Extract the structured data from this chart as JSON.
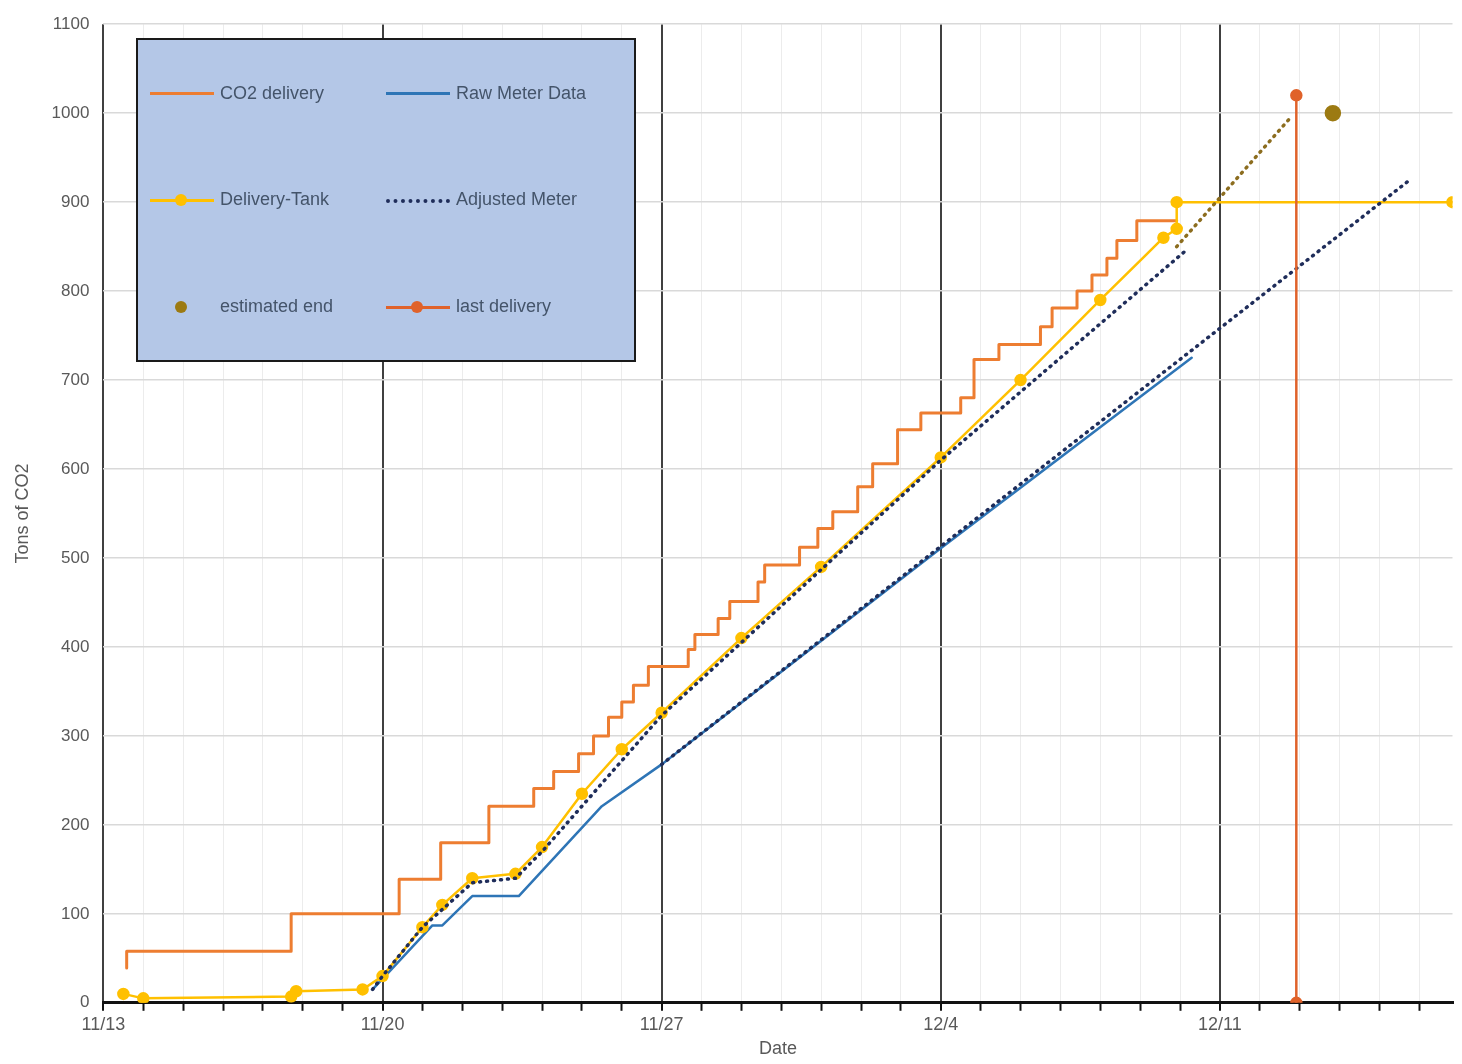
{
  "chart_data": {
    "type": "line",
    "xlabel": "Date",
    "ylabel": "Tons of CO2",
    "xlim": [
      "--11-13",
      "--12-16T20:00"
    ],
    "xticks": [
      {
        "value": "--11-13",
        "label": "11/13"
      },
      {
        "value": "--11-14",
        "label": null
      },
      {
        "value": "--11-15",
        "label": null
      },
      {
        "value": "--11-16",
        "label": null
      },
      {
        "value": "--11-17",
        "label": null
      },
      {
        "value": "--11-18",
        "label": null
      },
      {
        "value": "--11-19",
        "label": null
      },
      {
        "value": "--11-20",
        "label": "11/20"
      },
      {
        "value": "--11-21",
        "label": null
      },
      {
        "value": "--11-22",
        "label": null
      },
      {
        "value": "--11-23",
        "label": null
      },
      {
        "value": "--11-24",
        "label": null
      },
      {
        "value": "--11-25",
        "label": null
      },
      {
        "value": "--11-26",
        "label": null
      },
      {
        "value": "--11-27",
        "label": "11/27"
      },
      {
        "value": "--11-28",
        "label": null
      },
      {
        "value": "--11-29",
        "label": null
      },
      {
        "value": "--11-30",
        "label": null
      },
      {
        "value": "--12-01",
        "label": null
      },
      {
        "value": "--12-02",
        "label": null
      },
      {
        "value": "--12-03",
        "label": null
      },
      {
        "value": "--12-04",
        "label": "12/4"
      },
      {
        "value": "--12-05",
        "label": null
      },
      {
        "value": "--12-06",
        "label": null
      },
      {
        "value": "--12-07",
        "label": null
      },
      {
        "value": "--12-08",
        "label": null
      },
      {
        "value": "--12-09",
        "label": null
      },
      {
        "value": "--12-10",
        "label": null
      },
      {
        "value": "--12-11",
        "label": "12/11"
      },
      {
        "value": "--12-12",
        "label": null
      },
      {
        "value": "--12-13",
        "label": null
      },
      {
        "value": "--12-14",
        "label": null
      },
      {
        "value": "--12-15",
        "label": null
      },
      {
        "value": "--12-16",
        "label": null
      }
    ],
    "ylim": [
      0,
      1100
    ],
    "yticks": [
      0,
      100,
      200,
      300,
      400,
      500,
      600,
      700,
      800,
      900,
      1000,
      1100
    ],
    "grid": true,
    "legend": "top left",
    "series": [
      {
        "name": "CO2 delivery",
        "type": "step",
        "color": "#ed7d31",
        "marker": "none",
        "x": [
          "--11-13T14:00",
          "--11-17T17:00",
          "--11-20T10:00",
          "--11-21T11:00",
          "--11-22T16:00",
          "--11-23T19:00",
          "--11-24T07:00",
          "--11-24T22:00",
          "--11-25T07:00",
          "--11-25T16:00",
          "--11-26T00:00",
          "--11-26T07:00",
          "--11-26T16:00",
          "--11-27T16:00",
          "--11-27T20:00",
          "--11-28T10:00",
          "--11-28T17:00",
          "--11-29T10:00",
          "--11-29T14:00",
          "--11-30T11:00",
          "--11-30T22:00",
          "--12-01T07:00",
          "--12-01T22:00",
          "--12-02T07:00",
          "--12-02T22:00",
          "--12-03T12:00",
          "--12-04T12:00",
          "--12-04T20:00",
          "--12-05T11:00",
          "--12-06T12:00",
          "--12-06T19:00",
          "--12-07T10:00",
          "--12-07T19:00",
          "--12-08T04:00",
          "--12-08T10:00",
          "--12-08T22:00",
          "--12-09T10:00",
          "--12-09T22:00"
        ],
        "values": [
          39,
          58,
          100,
          139,
          180,
          221,
          241,
          260,
          280,
          300,
          321,
          338,
          357,
          378,
          397,
          414,
          432,
          451,
          473,
          492,
          512,
          533,
          552,
          580,
          606,
          644,
          663,
          680,
          723,
          740,
          760,
          781,
          800,
          818,
          837,
          857,
          879,
          879
        ]
      },
      {
        "name": "Raw Meter Data",
        "color": "#2e75b6",
        "marker": "none",
        "x": [
          "--11-19T18:00",
          "--11-20T00:00",
          "--11-21T06:00",
          "--11-21T12:00",
          "--11-22T06:00",
          "--11-23T10:00",
          "--11-25T12:00",
          "--11-27T00:00",
          "--12-04T00:00",
          "--12-10T07:00"
        ],
        "values": [
          15,
          27,
          87,
          87,
          120,
          120,
          221,
          268,
          511,
          725
        ]
      },
      {
        "name": "Delivery-Tank",
        "color": "#ffc000",
        "marker": "circle",
        "x": [
          "--11-13T12:00",
          "--11-14T00:00",
          "--11-17T17:00",
          "--11-17T20:00",
          "--11-19T12:00",
          "--11-20T00:00",
          "--11-21T00:00",
          "--11-21T12:00",
          "--11-22T06:00",
          "--11-23T08:00",
          "--11-24T00:00",
          "--11-25T00:00",
          "--11-26T00:00",
          "--11-27T00:00",
          "--11-29T00:00",
          "--12-01T00:00",
          "--12-04T00:00",
          "--12-06T00:00",
          "--12-08T00:00",
          "--12-09T14:00",
          "--12-09T22:00",
          "--12-09T22:00",
          "--12-16T20:00"
        ],
        "values": [
          10,
          5,
          7,
          13,
          15,
          30,
          85,
          110,
          140,
          145,
          175,
          235,
          285,
          326,
          410,
          490,
          613,
          700,
          790,
          860,
          870,
          900,
          900
        ]
      },
      {
        "name": "Adjusted Meter",
        "color": "#1f2d5a",
        "marker": "none",
        "line_style": "dotted",
        "x": [
          "--11-19T18:00",
          "--11-20T00:00",
          "--11-21T00:00",
          "--11-22T06:00",
          "--11-23T08:00",
          "--11-24T00:00",
          "--11-27T00:00",
          "--12-04T00:00",
          "--12-10T05:00",
          null,
          "--11-27T00:00",
          "--12-15T19:00"
        ],
        "values": [
          15,
          30,
          85,
          135,
          140,
          170,
          323,
          610,
          848,
          null,
          268,
          926
        ]
      },
      {
        "name": "estimated end",
        "type": "scatter",
        "color": "#9c7a12",
        "marker": "circle",
        "x": [
          "--12-13T20:00"
        ],
        "values": [
          1000
        ]
      },
      {
        "name": "last delivery",
        "color": "#e0622a",
        "marker": "circle",
        "x": [
          "--12-12T22:00",
          "--12-12T22:00"
        ],
        "values": [
          0,
          1020
        ]
      },
      {
        "color": "#8c6d1f",
        "marker": "none",
        "line_style": "dotted",
        "x": [
          "--12-09T22:00",
          "--12-12T19:00"
        ],
        "values": [
          850,
          996
        ]
      }
    ]
  }
}
